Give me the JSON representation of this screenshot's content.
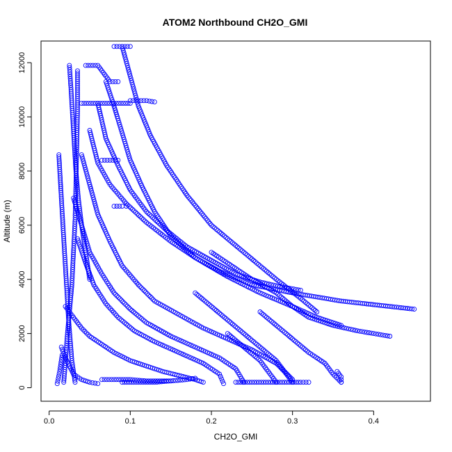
{
  "chart_data": {
    "type": "scatter",
    "title": "ATOM2 Northbound CH2O_GMI",
    "xlabel": "CH2O_GMI",
    "ylabel": "Altitude (m)",
    "xlim": [
      -0.01,
      0.47
    ],
    "ylim": [
      -500,
      12800
    ],
    "xticks": [
      0.0,
      0.1,
      0.2,
      0.3,
      0.4
    ],
    "xtick_labels": [
      "0.0",
      "0.1",
      "0.2",
      "0.3",
      "0.4"
    ],
    "yticks": [
      0,
      2000,
      4000,
      6000,
      8000,
      10000,
      12000
    ],
    "ytick_labels": [
      "0",
      "2000",
      "4000",
      "6000",
      "8000",
      "10000",
      "12000"
    ],
    "grid": false,
    "marker": "open-circle",
    "color": "#0000ff",
    "series": [
      {
        "x": [
          0.018,
          0.02,
          0.022,
          0.025,
          0.028,
          0.03,
          0.032,
          0.033,
          0.034,
          0.035,
          0.035
        ],
        "y": [
          200,
          900,
          1800,
          2800,
          3800,
          5000,
          6200,
          7500,
          8800,
          10200,
          11700
        ]
      },
      {
        "x": [
          0.025,
          0.027,
          0.029,
          0.031,
          0.033,
          0.036,
          0.04,
          0.045,
          0.05
        ],
        "y": [
          11900,
          11000,
          10000,
          9000,
          8000,
          7000,
          6000,
          5000,
          4000
        ]
      },
      {
        "x": [
          0.05,
          0.06,
          0.075,
          0.095,
          0.12,
          0.15,
          0.18,
          0.21,
          0.25,
          0.3,
          0.36,
          0.42,
          0.45
        ],
        "y": [
          9500,
          8300,
          7500,
          6800,
          6100,
          5400,
          4800,
          4300,
          3800,
          3500,
          3200,
          3000,
          2900
        ]
      },
      {
        "x": [
          0.06,
          0.07,
          0.085,
          0.1,
          0.12,
          0.145,
          0.17,
          0.2,
          0.23,
          0.26,
          0.29,
          0.31
        ],
        "y": [
          10500,
          9200,
          8200,
          7300,
          6500,
          5800,
          5200,
          4700,
          4200,
          3900,
          3700,
          3600
        ]
      },
      {
        "x": [
          0.07,
          0.08,
          0.09,
          0.1,
          0.115,
          0.13,
          0.15,
          0.18,
          0.22,
          0.26,
          0.3,
          0.33,
          0.36
        ],
        "y": [
          11300,
          10400,
          9400,
          8400,
          7400,
          6500,
          5600,
          4800,
          4100,
          3500,
          3000,
          2600,
          2300
        ]
      },
      {
        "x": [
          0.09,
          0.1,
          0.11,
          0.125,
          0.145,
          0.17,
          0.2,
          0.24,
          0.28,
          0.31,
          0.33
        ],
        "y": [
          12600,
          11500,
          10400,
          9300,
          8200,
          7100,
          6000,
          5000,
          4000,
          3300,
          2800
        ]
      },
      {
        "x": [
          0.04,
          0.05,
          0.06,
          0.075,
          0.09,
          0.11,
          0.13,
          0.16,
          0.19,
          0.22,
          0.25,
          0.28,
          0.3
        ],
        "y": [
          8600,
          7500,
          6400,
          5400,
          4500,
          3800,
          3200,
          2700,
          2200,
          1800,
          1400,
          900,
          300
        ]
      },
      {
        "x": [
          0.03,
          0.04,
          0.05,
          0.065,
          0.08,
          0.1,
          0.12,
          0.15,
          0.18,
          0.21,
          0.23,
          0.24
        ],
        "y": [
          7000,
          6000,
          5000,
          4200,
          3500,
          2900,
          2400,
          1900,
          1500,
          1100,
          700,
          200
        ]
      },
      {
        "x": [
          0.035,
          0.045,
          0.055,
          0.07,
          0.085,
          0.105,
          0.13,
          0.16,
          0.19,
          0.21,
          0.215
        ],
        "y": [
          5500,
          4600,
          3800,
          3100,
          2600,
          2100,
          1700,
          1300,
          900,
          500,
          150
        ]
      },
      {
        "x": [
          0.02,
          0.03,
          0.04,
          0.05,
          0.065,
          0.08,
          0.1,
          0.12,
          0.14,
          0.16,
          0.18,
          0.19
        ],
        "y": [
          3000,
          2600,
          2200,
          1900,
          1600,
          1300,
          1000,
          800,
          600,
          450,
          300,
          200
        ]
      },
      {
        "x": [
          0.015,
          0.02,
          0.025,
          0.03,
          0.04,
          0.05,
          0.06
        ],
        "y": [
          1500,
          1100,
          800,
          500,
          300,
          200,
          150
        ]
      },
      {
        "x": [
          0.012,
          0.016,
          0.02,
          0.024,
          0.028,
          0.032
        ],
        "y": [
          8600,
          6500,
          4500,
          2500,
          1000,
          200
        ]
      },
      {
        "x": [
          0.2,
          0.22,
          0.25,
          0.28,
          0.3,
          0.32,
          0.35,
          0.38,
          0.4,
          0.42
        ],
        "y": [
          5000,
          4600,
          4000,
          3500,
          3000,
          2600,
          2300,
          2100,
          2000,
          1900
        ]
      },
      {
        "x": [
          0.18,
          0.2,
          0.22,
          0.24,
          0.26,
          0.28,
          0.29,
          0.3
        ],
        "y": [
          3500,
          3000,
          2500,
          2000,
          1500,
          1000,
          600,
          200
        ]
      },
      {
        "x": [
          0.26,
          0.28,
          0.3,
          0.32,
          0.34,
          0.35,
          0.36
        ],
        "y": [
          2800,
          2300,
          1800,
          1300,
          900,
          500,
          200
        ]
      },
      {
        "x": [
          0.22,
          0.24,
          0.26,
          0.27,
          0.28
        ],
        "y": [
          2000,
          1500,
          1000,
          600,
          200
        ]
      },
      {
        "x": [
          0.1,
          0.11,
          0.12,
          0.13
        ],
        "y": [
          10600,
          10600,
          10600,
          10550
        ]
      },
      {
        "x": [
          0.04,
          0.06,
          0.08,
          0.1
        ],
        "y": [
          10500,
          10500,
          10500,
          10500
        ]
      },
      {
        "x": [
          0.045,
          0.06,
          0.075,
          0.085
        ],
        "y": [
          11900,
          11900,
          11300,
          11300
        ]
      },
      {
        "x": [
          0.08,
          0.09,
          0.1
        ],
        "y": [
          12600,
          12600,
          12600
        ]
      },
      {
        "x": [
          0.065,
          0.075,
          0.085
        ],
        "y": [
          8400,
          8400,
          8400
        ]
      },
      {
        "x": [
          0.08,
          0.09,
          0.095
        ],
        "y": [
          6700,
          6700,
          6700
        ]
      },
      {
        "x": [
          0.065,
          0.08,
          0.1,
          0.12,
          0.15,
          0.17,
          0.18
        ],
        "y": [
          300,
          300,
          300,
          250,
          250,
          300,
          350
        ]
      },
      {
        "x": [
          0.09,
          0.11,
          0.13,
          0.15
        ],
        "y": [
          200,
          200,
          200,
          250
        ]
      },
      {
        "x": [
          0.23,
          0.25,
          0.27,
          0.29,
          0.31,
          0.32
        ],
        "y": [
          200,
          200,
          200,
          200,
          200,
          200
        ]
      },
      {
        "x": [
          0.355,
          0.36,
          0.36
        ],
        "y": [
          600,
          400,
          200
        ]
      },
      {
        "x": [
          0.01,
          0.013,
          0.016
        ],
        "y": [
          150,
          600,
          1200
        ]
      }
    ]
  }
}
